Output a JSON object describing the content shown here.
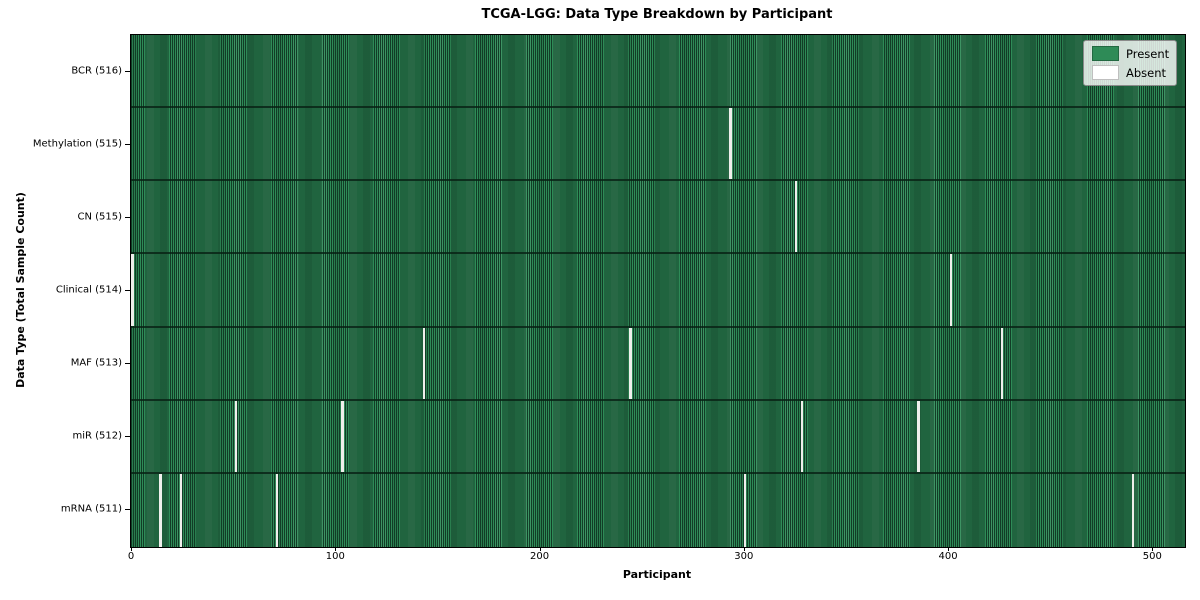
{
  "title": "TCGA-LGG: Data Type Breakdown by Participant",
  "legend": {
    "items": [
      {
        "label": "Present",
        "color": "#2e8b57"
      },
      {
        "label": "Absent",
        "color": "#ffffff"
      }
    ]
  },
  "chart_data": {
    "type": "heatmap",
    "title": "TCGA-LGG: Data Type Breakdown by Participant",
    "xlabel": "Participant",
    "ylabel": "Data Type (Total Sample Count)",
    "x_ticks": [
      "0",
      "100",
      "200",
      "300",
      "400",
      "500"
    ],
    "x_tick_values": [
      0,
      100,
      200,
      300,
      400,
      500
    ],
    "xlim": [
      0,
      516
    ],
    "total_participants": 516,
    "legend_entries": [
      "Present",
      "Absent"
    ],
    "legend_position": "upper right",
    "colors": {
      "present": "#2e8b57",
      "absent": "#ffffff"
    },
    "rows": [
      {
        "label": "BCR (516)",
        "data_type": "BCR",
        "present_count": 516,
        "absent_count": 0,
        "absent_participants": []
      },
      {
        "label": "Methylation (515)",
        "data_type": "Methylation",
        "present_count": 515,
        "absent_count": 1,
        "absent_participants": [
          293
        ]
      },
      {
        "label": "CN (515)",
        "data_type": "CN",
        "present_count": 515,
        "absent_count": 1,
        "absent_participants": [
          325
        ]
      },
      {
        "label": "Clinical (514)",
        "data_type": "Clinical",
        "present_count": 514,
        "absent_count": 2,
        "absent_participants": [
          0,
          401
        ]
      },
      {
        "label": "MAF (513)",
        "data_type": "MAF",
        "present_count": 513,
        "absent_count": 3,
        "absent_participants": [
          143,
          244,
          426
        ]
      },
      {
        "label": "miR (512)",
        "data_type": "miR",
        "present_count": 512,
        "absent_count": 4,
        "absent_participants": [
          51,
          103,
          328,
          385
        ]
      },
      {
        "label": "mRNA (511)",
        "data_type": "mRNA",
        "present_count": 511,
        "absent_count": 5,
        "absent_participants": [
          14,
          24,
          71,
          300,
          490
        ]
      }
    ]
  }
}
